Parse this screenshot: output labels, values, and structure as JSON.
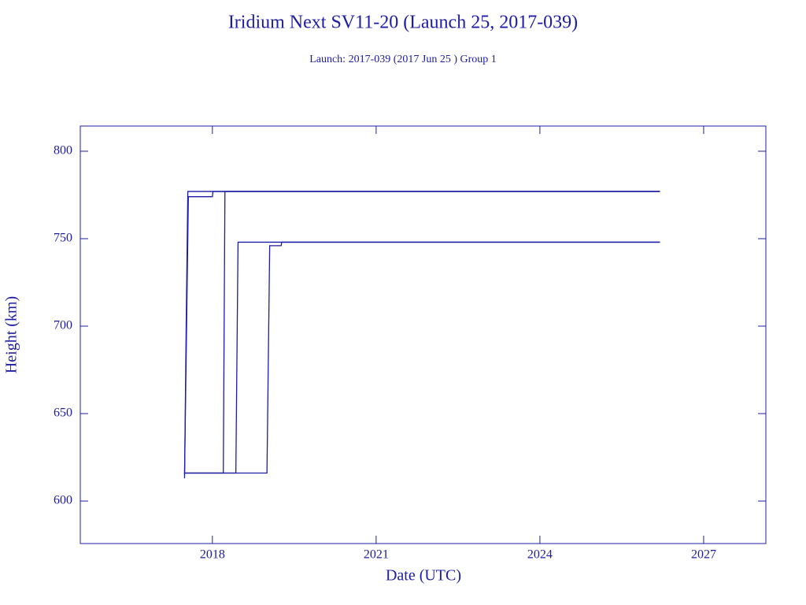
{
  "chart_data": {
    "type": "line",
    "title": "Iridium Next SV11-20 (Launch 25, 2017-039)",
    "subtitle": "Launch: 2017-039  (2017 Jun 25 )  Group 1",
    "x_label": "Date (UTC)",
    "y_label": "Height (km)",
    "color": "#1c1ca6",
    "xlim": [
      2015.58,
      2028.14
    ],
    "xticks": [
      2018,
      2021,
      2024,
      2027
    ],
    "ylim": [
      575.7,
      814.4
    ],
    "yticks": [
      600,
      650,
      700,
      750,
      800
    ],
    "series": [
      {
        "color": "#1c1ca6",
        "x": [
          2017.49,
          2017.52,
          2017.55,
          2026.2
        ],
        "values": [
          613,
          700,
          777,
          777
        ]
      },
      {
        "color": "#1c1ca6",
        "x": [
          2017.49,
          2017.56,
          2018.0,
          2018.01,
          2026.2
        ],
        "values": [
          615,
          774,
          774,
          777,
          777
        ]
      },
      {
        "color": "#1c1ca6",
        "x": [
          2017.5,
          2018.2,
          2018.23,
          2026.2
        ],
        "values": [
          616,
          616,
          777,
          777
        ]
      },
      {
        "color": "#1c1ca6",
        "x": [
          2017.5,
          2018.43,
          2018.47,
          2026.2
        ],
        "values": [
          616,
          616,
          748,
          748
        ]
      },
      {
        "color": "#1c1ca6",
        "x": [
          2017.5,
          2019.0,
          2019.05,
          2019.26,
          2019.27,
          2026.2
        ],
        "values": [
          616,
          616,
          746,
          746,
          748,
          748
        ]
      }
    ]
  }
}
